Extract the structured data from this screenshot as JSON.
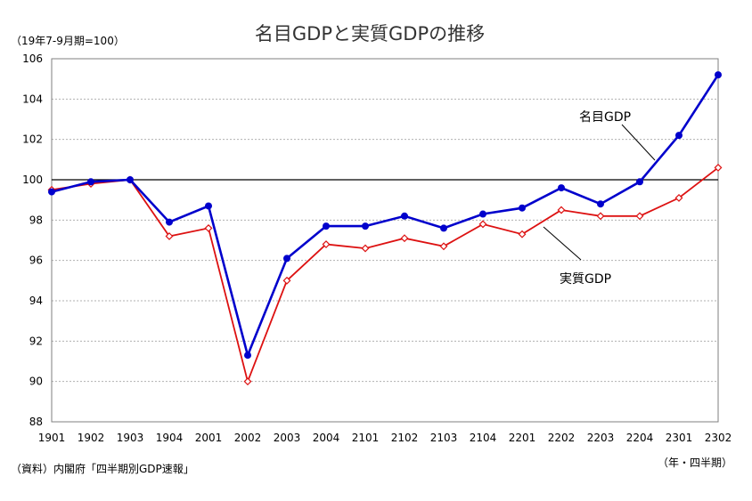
{
  "chart_data": {
    "type": "line",
    "title": "名目GDPと実質GDPの推移",
    "unit_note": "（19年7-9月期=100）",
    "x_axis_note": "（年・四半期）",
    "source": "（資料）内閣府「四半期別GDP速報」",
    "categories": [
      "1901",
      "1902",
      "1903",
      "1904",
      "2001",
      "2002",
      "2003",
      "2004",
      "2101",
      "2102",
      "2103",
      "2104",
      "2201",
      "2202",
      "2203",
      "2204",
      "2301",
      "2302"
    ],
    "ylim": [
      88,
      106
    ],
    "yticks": [
      88,
      90,
      92,
      94,
      96,
      98,
      100,
      102,
      104,
      106
    ],
    "grid": true,
    "reference_line": 100,
    "series": [
      {
        "name": "名目GDP",
        "color": "#0000cc",
        "marker": "filled-circle",
        "values": [
          99.4,
          99.9,
          100.0,
          97.9,
          98.7,
          91.3,
          96.1,
          97.7,
          97.7,
          98.2,
          97.6,
          98.3,
          98.6,
          99.6,
          98.8,
          99.9,
          102.2,
          105.2
        ]
      },
      {
        "name": "実質GDP",
        "color": "#dd1111",
        "marker": "open-diamond",
        "values": [
          99.5,
          99.8,
          100.0,
          97.2,
          97.6,
          90.0,
          95.0,
          96.8,
          96.6,
          97.1,
          96.7,
          97.8,
          97.3,
          98.5,
          98.2,
          98.2,
          99.1,
          100.6
        ]
      }
    ]
  }
}
